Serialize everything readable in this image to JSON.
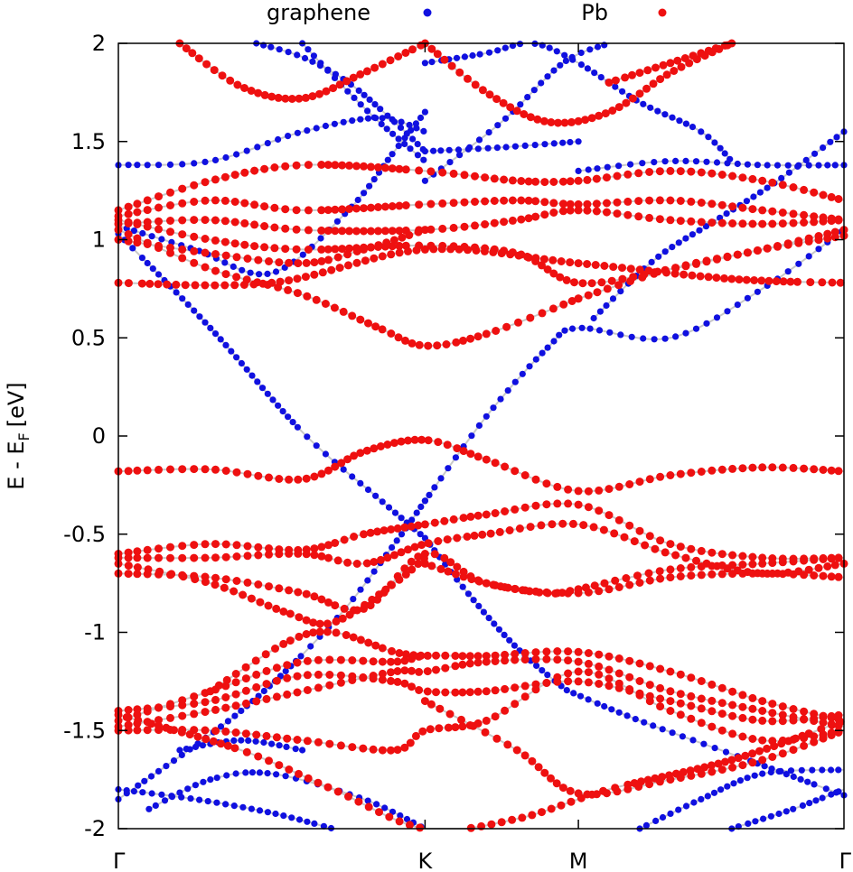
{
  "chart_data": {
    "type": "scatter",
    "title": "",
    "ylabel": "E - E",
    "ylabel_subscript": "F",
    "ylabel_unit": "[eV]",
    "ylim": [
      -2,
      2
    ],
    "y_ticks": [
      "2",
      "1.5",
      "1",
      "0.5",
      "0",
      "-0.5",
      "-1",
      "-1.5",
      "-2"
    ],
    "y_tick_values": [
      2,
      1.5,
      1,
      0.5,
      0,
      -0.5,
      -1,
      -1.5,
      -2
    ],
    "x_ticks": [
      "Γ",
      "K",
      "M",
      "Γ"
    ],
    "x_tick_values": [
      0,
      1,
      1.5,
      2.366
    ],
    "xlim": [
      0,
      2.366
    ],
    "grid": false,
    "legend_position": "top",
    "series": [
      {
        "name": "graphene",
        "color": "#1010e0",
        "bands": [
          {
            "x": [
              0,
              0.3,
              0.6,
              0.85,
              1.0
            ],
            "y": [
              1.03,
              0.55,
              0.02,
              -0.32,
              -0.52
            ]
          },
          {
            "x": [
              1.0,
              1.15,
              1.3,
              1.45,
              1.5,
              1.7,
              2.0,
              2.366
            ],
            "y": [
              -0.52,
              -0.82,
              -1.08,
              -1.28,
              -1.32,
              -1.45,
              -1.62,
              -1.83
            ]
          },
          {
            "x": [
              0,
              0.4,
              0.7,
              0.9,
              1.0
            ],
            "y": [
              -1.85,
              -1.4,
              -0.95,
              -0.55,
              -0.33
            ]
          },
          {
            "x": [
              1.0,
              1.2,
              1.4,
              1.5,
              1.8,
              2.1,
              2.366
            ],
            "y": [
              -0.33,
              0.1,
              0.45,
              0.55,
              0.5,
              0.75,
              1.05
            ]
          },
          {
            "x": [
              0,
              0.25,
              0.5,
              0.75,
              0.9,
              1.0
            ],
            "y": [
              1.07,
              0.95,
              0.83,
              1.15,
              1.45,
              1.65
            ]
          },
          {
            "x": [
              0,
              0.3,
              0.6,
              0.85,
              1.0
            ],
            "y": [
              1.38,
              1.4,
              1.55,
              1.62,
              1.55
            ]
          },
          {
            "x": [
              1.0,
              1.25,
              1.5
            ],
            "y": [
              1.45,
              1.47,
              1.5
            ]
          },
          {
            "x": [
              1.5,
              1.8,
              2.1,
              2.366
            ],
            "y": [
              1.35,
              1.4,
              1.38,
              1.38
            ]
          },
          {
            "x": [
              0.45,
              0.6,
              0.75,
              0.9,
              1.0
            ],
            "y": [
              2.0,
              1.93,
              1.8,
              1.6,
              1.45
            ]
          },
          {
            "x": [
              0.6,
              0.72,
              0.85,
              1.0
            ],
            "y": [
              2.0,
              1.8,
              1.6,
              1.4
            ]
          },
          {
            "x": [
              1.0,
              1.2,
              1.35,
              1.5,
              1.7,
              1.9,
              2.0
            ],
            "y": [
              1.9,
              1.95,
              2.0,
              1.9,
              1.7,
              1.55,
              1.4
            ]
          },
          {
            "x": [
              1.0,
              1.25,
              1.45,
              1.6
            ],
            "y": [
              1.3,
              1.6,
              1.9,
              2.0
            ]
          },
          {
            "x": [
              1.55,
              1.75,
              1.95,
              2.15,
              2.366
            ],
            "y": [
              0.6,
              0.9,
              1.1,
              1.3,
              1.55
            ]
          },
          {
            "x": [
              0.2,
              0.4,
              0.6
            ],
            "y": [
              -1.6,
              -1.55,
              -1.6
            ]
          },
          {
            "x": [
              0,
              0.25,
              0.5,
              0.7
            ],
            "y": [
              -1.8,
              -1.85,
              -1.92,
              -2.0
            ]
          },
          {
            "x": [
              0.1,
              0.3,
              0.5,
              0.8,
              1.0
            ],
            "y": [
              -1.9,
              -1.75,
              -1.72,
              -1.85,
              -2.0
            ]
          },
          {
            "x": [
              1.7,
              1.9,
              2.1,
              2.366
            ],
            "y": [
              -2.0,
              -1.85,
              -1.72,
              -1.7
            ]
          },
          {
            "x": [
              2.0,
              2.2,
              2.366
            ],
            "y": [
              -2.0,
              -1.9,
              -1.8
            ]
          }
        ]
      },
      {
        "name": "Pb",
        "color": "#ee1010",
        "bands": [
          {
            "x": [
              0,
              0.3,
              0.6,
              0.85,
              1.0,
              1.2,
              1.5
            ],
            "y": [
              1.05,
              0.85,
              0.72,
              0.55,
              0.46,
              0.52,
              0.7
            ]
          },
          {
            "x": [
              1.5,
              1.8,
              2.1,
              2.366
            ],
            "y": [
              0.7,
              0.85,
              0.95,
              1.05
            ]
          },
          {
            "x": [
              0,
              0.3,
              0.6,
              1.0,
              1.3,
              1.5,
              1.8,
              2.1,
              2.366
            ],
            "y": [
              1.1,
              1.0,
              0.95,
              0.97,
              0.93,
              0.78,
              0.85,
              0.95,
              1.02
            ]
          },
          {
            "x": [
              0,
              0.3,
              0.6,
              1.0,
              1.3,
              1.5,
              1.8,
              2.1,
              2.366
            ],
            "y": [
              1.12,
              1.2,
              1.15,
              1.18,
              1.2,
              1.18,
              1.2,
              1.15,
              1.1
            ]
          },
          {
            "x": [
              0,
              0.3,
              0.6,
              1.0,
              1.3,
              1.5,
              1.8,
              2.1,
              2.366
            ],
            "y": [
              1.08,
              1.1,
              1.05,
              1.05,
              1.1,
              1.15,
              1.1,
              1.08,
              1.1
            ]
          },
          {
            "x": [
              0,
              0.3,
              0.6,
              1.0,
              1.3,
              1.5,
              1.8,
              2.1,
              2.366
            ],
            "y": [
              1.15,
              1.3,
              1.38,
              1.35,
              1.3,
              1.3,
              1.35,
              1.3,
              1.2
            ]
          },
          {
            "x": [
              0,
              0.3,
              0.6,
              0.8,
              1.0
            ],
            "y": [
              1.0,
              0.93,
              0.88,
              0.95,
              1.05
            ]
          },
          {
            "x": [
              0,
              0.5,
              1.0,
              1.5,
              2.0,
              2.366
            ],
            "y": [
              0.78,
              0.78,
              0.95,
              0.88,
              0.8,
              0.78
            ]
          },
          {
            "x": [
              0.2,
              0.4,
              0.6,
              0.8,
              1.0
            ],
            "y": [
              2.0,
              1.78,
              1.72,
              1.85,
              2.0
            ]
          },
          {
            "x": [
              1.0,
              1.2,
              1.4,
              1.6,
              1.8,
              2.0
            ],
            "y": [
              2.0,
              1.75,
              1.6,
              1.65,
              1.85,
              2.0
            ]
          },
          {
            "x": [
              1.6,
              1.8,
              2.0
            ],
            "y": [
              1.8,
              1.9,
              2.0
            ]
          },
          {
            "x": [
              0,
              0.3,
              0.6,
              0.8,
              1.0,
              1.2,
              1.5,
              1.8,
              2.1,
              2.366
            ],
            "y": [
              -0.18,
              -0.17,
              -0.22,
              -0.08,
              -0.02,
              -0.12,
              -0.28,
              -0.2,
              -0.16,
              -0.18
            ]
          },
          {
            "x": [
              0,
              0.3,
              0.6,
              0.8,
              1.0,
              1.2,
              1.5,
              1.8,
              2.1,
              2.366
            ],
            "y": [
              -0.6,
              -0.55,
              -0.58,
              -0.5,
              -0.45,
              -0.4,
              -0.35,
              -0.55,
              -0.62,
              -0.62
            ]
          },
          {
            "x": [
              0,
              0.3,
              0.6,
              0.8,
              1.0,
              1.2,
              1.5,
              1.8,
              2.1,
              2.366
            ],
            "y": [
              -0.62,
              -0.62,
              -0.6,
              -0.65,
              -0.55,
              -0.5,
              -0.45,
              -0.6,
              -0.7,
              -0.65
            ]
          },
          {
            "x": [
              0,
              0.3,
              0.6,
              0.8,
              1.0,
              1.2,
              1.5,
              1.8,
              2.1,
              2.366
            ],
            "y": [
              -0.7,
              -0.72,
              -0.8,
              -0.88,
              -0.6,
              -0.75,
              -0.8,
              -0.72,
              -0.7,
              -0.72
            ]
          },
          {
            "x": [
              0,
              0.3,
              0.55,
              0.7,
              0.9,
              1.0
            ],
            "y": [
              -0.65,
              -0.75,
              -0.9,
              -0.95,
              -0.75,
              -0.62
            ]
          },
          {
            "x": [
              1.0,
              1.2,
              1.4,
              1.5,
              1.8,
              2.1,
              2.366
            ],
            "y": [
              -0.65,
              -0.75,
              -0.8,
              -0.78,
              -0.68,
              -0.65,
              -0.62
            ]
          },
          {
            "x": [
              0,
              0.3,
              0.6,
              0.9,
              1.0,
              1.2,
              1.5,
              1.8,
              2.1,
              2.366
            ],
            "y": [
              -1.45,
              -1.3,
              -1.15,
              -1.15,
              -1.12,
              -1.12,
              -1.1,
              -1.2,
              -1.35,
              -1.45
            ]
          },
          {
            "x": [
              0,
              0.3,
              0.6,
              0.9,
              1.0,
              1.2,
              1.5,
              1.8,
              2.1,
              2.366
            ],
            "y": [
              -1.48,
              -1.4,
              -1.3,
              -1.2,
              -1.2,
              -1.15,
              -1.15,
              -1.3,
              -1.4,
              -1.48
            ]
          },
          {
            "x": [
              0,
              0.3,
              0.6,
              0.9,
              1.0,
              1.2,
              1.5,
              1.8,
              2.1,
              2.366
            ],
            "y": [
              -1.4,
              -1.35,
              -1.22,
              -1.25,
              -1.3,
              -1.3,
              -1.25,
              -1.35,
              -1.45,
              -1.42
            ]
          },
          {
            "x": [
              0,
              0.3,
              0.6,
              0.9,
              1.0,
              1.2,
              1.5,
              1.8,
              2.1,
              2.366
            ],
            "y": [
              -1.5,
              -1.5,
              -1.55,
              -1.6,
              -1.5,
              -1.45,
              -1.2,
              -1.4,
              -1.55,
              -1.5
            ]
          },
          {
            "x": [
              0,
              0.4,
              0.7,
              1.0,
              1.3,
              1.6,
              2.0,
              2.366
            ],
            "y": [
              -1.42,
              -1.6,
              -1.8,
              -2.0,
              -1.95,
              -1.8,
              -1.65,
              -1.45
            ]
          },
          {
            "x": [
              1.0,
              1.3,
              1.5,
              1.8,
              2.1,
              2.366
            ],
            "y": [
              -1.35,
              -1.6,
              -1.82,
              -1.75,
              -1.65,
              -1.5
            ]
          },
          {
            "x": [
              0.3,
              0.55,
              0.7,
              0.9,
              1.0
            ],
            "y": [
              -1.3,
              -1.05,
              -1.0,
              -1.1,
              -1.12
            ]
          }
        ]
      }
    ]
  }
}
